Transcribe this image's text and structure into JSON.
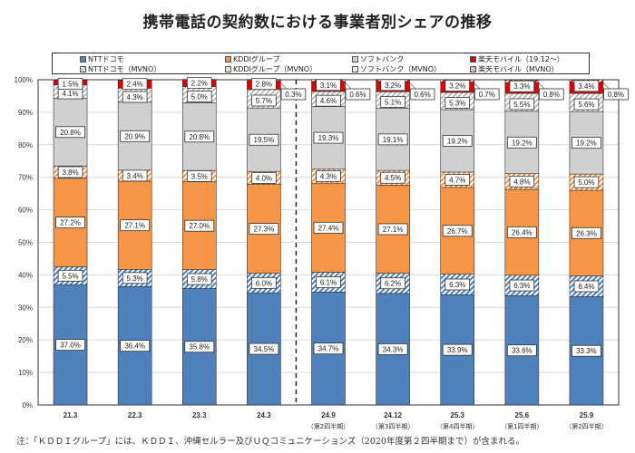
{
  "title": "携帯電話の契約数における事業者別シェアの推移",
  "footnote": "注：「ＫＤＤＩグループ」には、ＫＤＤＩ、沖縄セルラー及びＵＱコミュニケーションズ（2020年度第２四半期まで）が含まれる。",
  "chart_data": {
    "type": "bar",
    "stacked": true,
    "title": "携帯電話の契約数における事業者別シェアの推移",
    "xlabel": "",
    "ylabel": "",
    "ylim": [
      0,
      100
    ],
    "yticks": [
      "0%",
      "10%",
      "20%",
      "30%",
      "40%",
      "50%",
      "60%",
      "70%",
      "80%",
      "90%",
      "100%"
    ],
    "grid": true,
    "legend_position": "top",
    "divider_after_category": "24.3",
    "categories": [
      "21.3",
      "22.3",
      "23.3",
      "24.3",
      "24.9",
      "24.12",
      "25.3",
      "25.6",
      "25.9"
    ],
    "category_sublabels": [
      "",
      "",
      "",
      "",
      "（第2四半期）",
      "（第3四半期）",
      "（第4四半期）",
      "（第1四半期）",
      "（第2四半期）"
    ],
    "series": [
      {
        "name": "NTTドコモ",
        "color": "#4f81bd",
        "pattern": "solid",
        "values": [
          37.0,
          36.4,
          35.8,
          34.5,
          34.7,
          34.3,
          33.9,
          33.6,
          33.3
        ]
      },
      {
        "name": "NTTドコモ（MVNO）",
        "color": "#4f81bd",
        "pattern": "hatch",
        "values": [
          5.5,
          5.3,
          5.8,
          6.0,
          6.1,
          6.2,
          6.3,
          6.3,
          6.4
        ]
      },
      {
        "name": "KDDIグループ",
        "color": "#f79646",
        "pattern": "solid",
        "values": [
          27.2,
          27.1,
          27.0,
          27.3,
          27.4,
          27.1,
          26.7,
          26.4,
          26.3
        ]
      },
      {
        "name": "KDDIグループ（MVNO）",
        "color": "#f79646",
        "pattern": "hatch",
        "values": [
          3.8,
          3.4,
          3.5,
          4.0,
          4.3,
          4.5,
          4.7,
          4.8,
          5.0
        ]
      },
      {
        "name": "ソフトバンク",
        "color": "#d0d0d0",
        "pattern": "solid",
        "values": [
          20.8,
          20.9,
          20.8,
          19.5,
          19.3,
          19.1,
          19.2,
          19.2,
          19.2
        ]
      },
      {
        "name": "ソフトバンク（MVNO）",
        "color": "#bfbfbf",
        "pattern": "hatch",
        "values": [
          4.1,
          4.3,
          5.0,
          5.7,
          4.6,
          5.1,
          5.3,
          5.5,
          5.6
        ]
      },
      {
        "name": "楽天モバイル（19.12～）",
        "color": "#e00000",
        "pattern": "solid",
        "values": [
          1.5,
          2.4,
          2.2,
          2.8,
          3.1,
          3.2,
          3.2,
          3.3,
          3.4
        ]
      },
      {
        "name": "楽天モバイル（MVNO）",
        "color": "#e00000",
        "pattern": "hatch",
        "values": [
          0,
          0,
          0,
          0.3,
          0.6,
          0.6,
          0.7,
          0.8,
          0.8
        ]
      }
    ],
    "data_labels": [
      [
        "37.0%",
        "5.5%",
        "27.2%",
        "3.8%",
        "20.8%",
        "4.1%",
        "1.5%",
        ""
      ],
      [
        "36.4%",
        "5.3%",
        "27.1%",
        "3.4%",
        "20.9%",
        "4.3%",
        "2.4%",
        ""
      ],
      [
        "35.8%",
        "5.8%",
        "27.0%",
        "3.5%",
        "20.8%",
        "5.0%",
        "2.2%",
        ""
      ],
      [
        "34.5%",
        "6.0%",
        "27.3%",
        "4.0%",
        "19.5%",
        "5.7%",
        "2.8%",
        "0.3%"
      ],
      [
        "34.7%",
        "6.1%",
        "27.4%",
        "4.3%",
        "19.3%",
        "4.6%",
        "3.1%",
        "0.6%"
      ],
      [
        "34.3%",
        "6.2%",
        "27.1%",
        "4.5%",
        "19.1%",
        "5.1%",
        "3.2%",
        "0.6%"
      ],
      [
        "33.9%",
        "6.3%",
        "26.7%",
        "4.7%",
        "19.2%",
        "5.3%",
        "3.2%",
        "0.7%"
      ],
      [
        "33.6%",
        "6.3%",
        "26.4%",
        "4.8%",
        "19.2%",
        "5.5%",
        "3.3%",
        "0.8%"
      ],
      [
        "33.3%",
        "6.4%",
        "26.3%",
        "5.0%",
        "19.2%",
        "5.6%",
        "3.4%",
        "0.8%"
      ]
    ]
  },
  "legend": [
    {
      "label": "NTTドコモ"
    },
    {
      "label": "NTTドコモ（MVNO）"
    },
    {
      "label": "KDDIグループ"
    },
    {
      "label": "KDDIグループ（MVNO）"
    },
    {
      "label": "ソフトバンク"
    },
    {
      "label": "ソフトバンク（MVNO）"
    },
    {
      "label": "楽天モバイル（19.12～）"
    },
    {
      "label": "楽天モバイル（MVNO）"
    }
  ]
}
